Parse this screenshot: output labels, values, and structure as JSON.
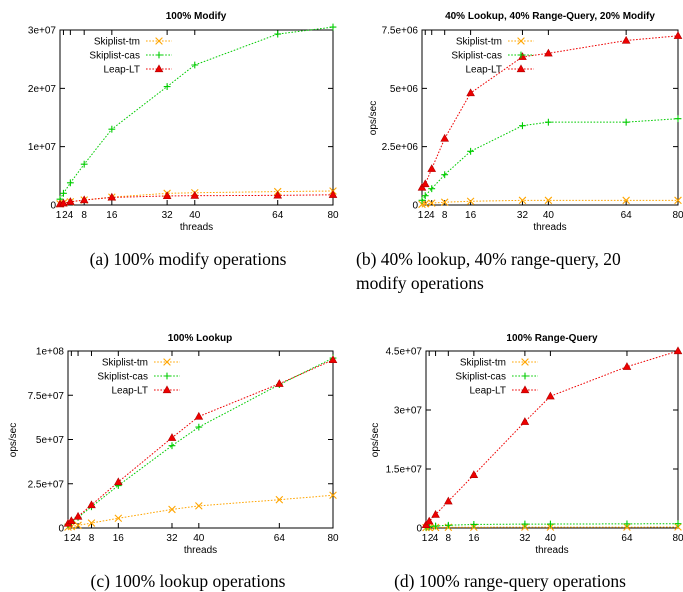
{
  "chart_data": [
    {
      "type": "line",
      "title": "100% Modify",
      "xlabel": "threads",
      "ylabel": "",
      "x": [
        1,
        2,
        4,
        8,
        16,
        32,
        40,
        64,
        80
      ],
      "xticks": [
        "1",
        "2",
        "4",
        "8",
        "16",
        "32",
        "40",
        "64",
        "80"
      ],
      "ylim": [
        0,
        30000000
      ],
      "yticks": [
        0,
        10000000,
        20000000,
        30000000
      ],
      "ytick_labels": [
        "0",
        "1e+07",
        "2e+07",
        "3e+07"
      ],
      "legend": "top-left",
      "caption": [
        "(a) 100% modify operations"
      ],
      "series": [
        {
          "name": "Skiplist-tm",
          "color": "#ffa500",
          "marker": "x",
          "values": [
            200000,
            350000,
            550000,
            850000,
            1350000,
            2000000,
            2100000,
            2300000,
            2400000
          ]
        },
        {
          "name": "Skiplist-cas",
          "color": "#00cc00",
          "marker": "+",
          "values": [
            1000000,
            2000000,
            3800000,
            7000000,
            13000000,
            20300000,
            24000000,
            29300000,
            30500000
          ]
        },
        {
          "name": "Leap-LT",
          "color": "#ee0000",
          "marker": "triangle",
          "values": [
            150000,
            300000,
            550000,
            850000,
            1300000,
            1550000,
            1600000,
            1650000,
            1750000
          ]
        }
      ]
    },
    {
      "type": "line",
      "title": "40% Lookup, 40% Range-Query, 20% Modify",
      "xlabel": "threads",
      "ylabel": "ops/sec",
      "x": [
        1,
        2,
        4,
        8,
        16,
        32,
        40,
        64,
        80
      ],
      "xticks": [
        "1",
        "2",
        "4",
        "8",
        "16",
        "32",
        "40",
        "64",
        "80"
      ],
      "ylim": [
        0,
        7500000
      ],
      "yticks": [
        0,
        2500000,
        5000000,
        7500000
      ],
      "ytick_labels": [
        "0",
        "2.5e+06",
        "5e+06",
        "7.5e+06"
      ],
      "legend": "top-left",
      "caption": [
        "(b) 40% lookup, 40% range-query, 20",
        "modify operations"
      ],
      "series": [
        {
          "name": "Skiplist-tm",
          "color": "#ffa500",
          "marker": "x",
          "values": [
            30000,
            50000,
            80000,
            120000,
            160000,
            200000,
            200000,
            200000,
            200000
          ]
        },
        {
          "name": "Skiplist-cas",
          "color": "#00cc00",
          "marker": "+",
          "values": [
            200000,
            400000,
            700000,
            1300000,
            2300000,
            3400000,
            3550000,
            3550000,
            3700000
          ]
        },
        {
          "name": "Leap-LT",
          "color": "#ee0000",
          "marker": "triangle",
          "values": [
            750000,
            900000,
            1550000,
            2850000,
            4800000,
            6350000,
            6500000,
            7050000,
            7250000
          ]
        }
      ]
    },
    {
      "type": "line",
      "title": "100% Lookup",
      "xlabel": "threads",
      "ylabel": "ops/sec",
      "x": [
        1,
        2,
        4,
        8,
        16,
        32,
        40,
        64,
        80
      ],
      "xticks": [
        "1",
        "2",
        "4",
        "8",
        "16",
        "32",
        "40",
        "64",
        "80"
      ],
      "ylim": [
        0,
        100000000
      ],
      "yticks": [
        0,
        25000000,
        50000000,
        75000000,
        100000000
      ],
      "ytick_labels": [
        "0",
        "2.5e+07",
        "5e+07",
        "7.5e+07",
        "1e+08"
      ],
      "legend": "top-left",
      "caption": [
        "(c) 100% lookup operations"
      ],
      "series": [
        {
          "name": "Skiplist-tm",
          "color": "#ffa500",
          "marker": "x",
          "values": [
            500000,
            800000,
            1500000,
            2800000,
            5500000,
            10500000,
            12500000,
            16000000,
            18500000
          ]
        },
        {
          "name": "Skiplist-cas",
          "color": "#00cc00",
          "marker": "+",
          "values": [
            2000000,
            3500000,
            6000000,
            12000000,
            24000000,
            46500000,
            57000000,
            81000000,
            96000000
          ]
        },
        {
          "name": "Leap-LT",
          "color": "#ee0000",
          "marker": "triangle",
          "values": [
            2500000,
            4000000,
            6500000,
            13000000,
            26000000,
            51000000,
            63000000,
            81500000,
            95000000
          ]
        }
      ]
    },
    {
      "type": "line",
      "title": "100% Range-Query",
      "xlabel": "threads",
      "ylabel": "ops/sec",
      "x": [
        1,
        2,
        4,
        8,
        16,
        32,
        40,
        64,
        80
      ],
      "xticks": [
        "1",
        "2",
        "4",
        "8",
        "16",
        "32",
        "40",
        "64",
        "80"
      ],
      "ylim": [
        0,
        45000000
      ],
      "yticks": [
        0,
        15000000,
        30000000,
        45000000
      ],
      "ytick_labels": [
        "0",
        "1.5e+07",
        "3e+07",
        "4.5e+07"
      ],
      "legend": "top-left",
      "caption": [
        "(d) 100% range-query operations"
      ],
      "series": [
        {
          "name": "Skiplist-tm",
          "color": "#ffa500",
          "marker": "x",
          "values": [
            100000,
            120000,
            150000,
            180000,
            200000,
            220000,
            220000,
            230000,
            250000
          ]
        },
        {
          "name": "Skiplist-cas",
          "color": "#00cc00",
          "marker": "+",
          "values": [
            200000,
            300000,
            500000,
            700000,
            900000,
            1000000,
            1000000,
            1050000,
            1100000
          ]
        },
        {
          "name": "Leap-LT",
          "color": "#ee0000",
          "marker": "triangle",
          "values": [
            800000,
            1700000,
            3400000,
            6800000,
            13500000,
            27000000,
            33500000,
            41000000,
            45000000
          ]
        }
      ]
    }
  ]
}
